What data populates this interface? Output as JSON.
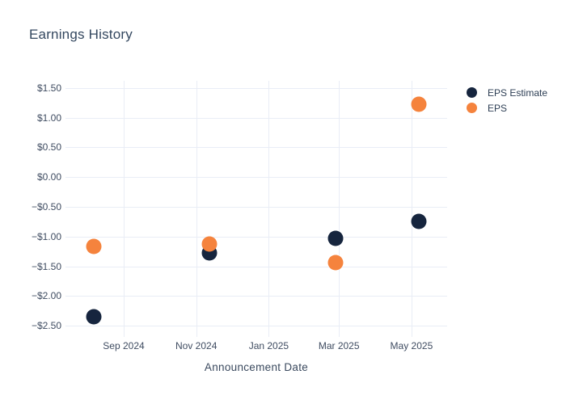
{
  "chart": {
    "background": "#ffffff"
  },
  "chart_data": {
    "type": "scatter",
    "title": "Earnings History",
    "xlabel": "Announcement Date",
    "ylabel": "",
    "grid": true,
    "legend_position": "right",
    "marker_diameter_px": 19,
    "colors": {
      "estimate": "#16253e",
      "actual": "#f5833d",
      "grid": "#e9edf6",
      "title_text": "#33475f",
      "axis_text": "#3f4c61"
    },
    "x_domain": [
      "2024-07-14",
      "2025-05-31"
    ],
    "ylim": [
      -2.69,
      1.62
    ],
    "x_ticks": [
      {
        "date": "2024-09-01",
        "label": "Sep 2024"
      },
      {
        "date": "2024-11-01",
        "label": "Nov 2024"
      },
      {
        "date": "2025-01-01",
        "label": "Jan 2025"
      },
      {
        "date": "2025-03-01",
        "label": "Mar 2025"
      },
      {
        "date": "2025-05-01",
        "label": "May 2025"
      }
    ],
    "y_ticks": [
      {
        "value": 1.5,
        "label": "$1.50"
      },
      {
        "value": 1.0,
        "label": "$1.00"
      },
      {
        "value": 0.5,
        "label": "$0.50"
      },
      {
        "value": 0.0,
        "label": "$0.00"
      },
      {
        "value": -0.5,
        "label": "−$0.50"
      },
      {
        "value": -1.0,
        "label": "−$1.00"
      },
      {
        "value": -1.5,
        "label": "−$1.50"
      },
      {
        "value": -2.0,
        "label": "−$2.00"
      },
      {
        "value": -2.5,
        "label": "−$2.50"
      }
    ],
    "series": [
      {
        "name": "EPS Estimate",
        "color": "#16253e",
        "points": [
          {
            "date": "2024-08-07",
            "value": -2.35
          },
          {
            "date": "2024-11-12",
            "value": -1.28
          },
          {
            "date": "2025-02-26",
            "value": -1.03
          },
          {
            "date": "2025-05-07",
            "value": -0.75
          }
        ]
      },
      {
        "name": "EPS",
        "color": "#f5833d",
        "points": [
          {
            "date": "2024-08-07",
            "value": -1.16
          },
          {
            "date": "2024-11-12",
            "value": -1.13
          },
          {
            "date": "2025-02-26",
            "value": -1.44
          },
          {
            "date": "2025-05-07",
            "value": 1.22
          }
        ]
      }
    ]
  }
}
